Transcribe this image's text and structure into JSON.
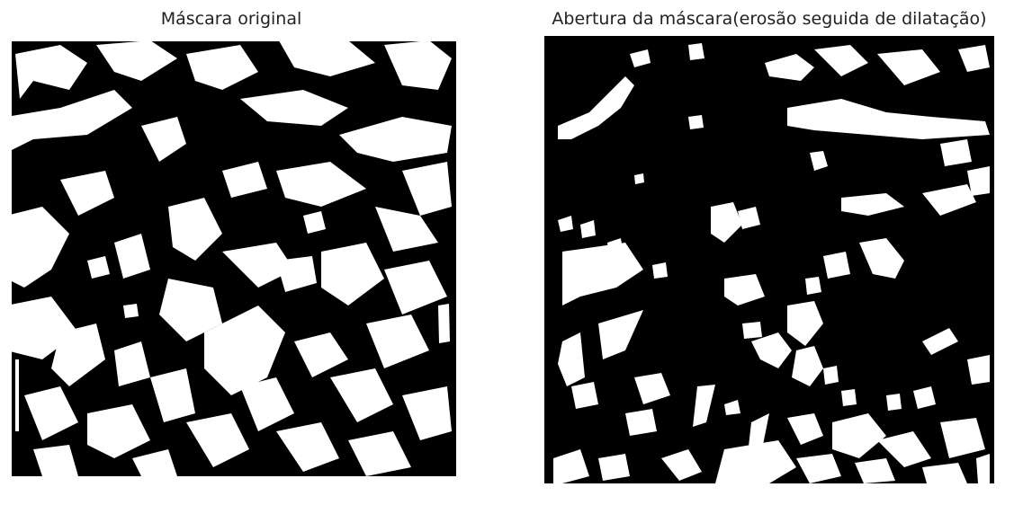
{
  "panels": [
    {
      "title": "Máscara original",
      "kind": "binary-mask",
      "colors": {
        "foreground": "#ffffff",
        "background": "#000000"
      }
    },
    {
      "title": "Abertura da máscara(erosão seguida de dilatação)",
      "kind": "binary-mask",
      "colors": {
        "foreground": "#ffffff",
        "background": "#000000"
      }
    }
  ]
}
